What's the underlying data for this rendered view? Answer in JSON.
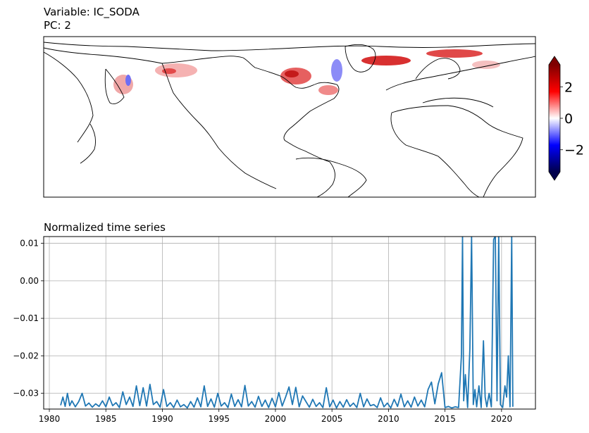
{
  "map_panel": {
    "title_line1": "Variable: IC_SODA",
    "title_line2": "PC: 2",
    "colormap": [
      "#00004c",
      "#0000ff",
      "#ffffff",
      "#ff0000",
      "#7f0000"
    ],
    "colorbar": {
      "ticks": [
        -2,
        0,
        2
      ],
      "tick_labels": [
        "−2",
        "0",
        "2"
      ],
      "vmin": -3.4,
      "vmax": 3.4
    }
  },
  "chart_data": {
    "type": "line",
    "title": "Normalized time series",
    "xlabel": "",
    "ylabel": "",
    "xlim": [
      1979.5,
      2023.0
    ],
    "ylim": [
      -0.0342,
      0.0118
    ],
    "x_ticks": [
      1980,
      1985,
      1990,
      1995,
      2000,
      2005,
      2010,
      2015,
      2020
    ],
    "x_tick_labels": [
      "1980",
      "1985",
      "1990",
      "1995",
      "2000",
      "2005",
      "2010",
      "2015",
      "2020"
    ],
    "y_ticks": [
      -0.03,
      -0.02,
      -0.01,
      0.0,
      0.01
    ],
    "y_tick_labels": [
      "−0.03",
      "−0.02",
      "−0.01",
      "0.00",
      "0.01"
    ],
    "grid": true,
    "line_color": "#1f77b4",
    "series": [
      {
        "x": [
          1981.0,
          1981.2,
          1981.4,
          1981.6,
          1981.8,
          1982.0,
          1982.3,
          1982.6,
          1982.9,
          1983.2,
          1983.5,
          1983.8,
          1984.1,
          1984.4,
          1984.7,
          1985.0,
          1985.3,
          1985.6,
          1985.9,
          1986.2,
          1986.5,
          1986.8,
          1987.1,
          1987.4,
          1987.7,
          1988.0,
          1988.3,
          1988.6,
          1988.9,
          1989.2,
          1989.5,
          1989.8,
          1990.1,
          1990.4,
          1990.7,
          1991.0,
          1991.3,
          1991.6,
          1991.9,
          1992.2,
          1992.5,
          1992.8,
          1993.1,
          1993.4,
          1993.7,
          1994.0,
          1994.3,
          1994.6,
          1994.9,
          1995.2,
          1995.5,
          1995.8,
          1996.1,
          1996.4,
          1996.7,
          1997.0,
          1997.3,
          1997.6,
          1997.9,
          1998.2,
          1998.5,
          1998.8,
          1999.1,
          1999.4,
          1999.7,
          2000.0,
          2000.3,
          2000.6,
          2000.9,
          2001.2,
          2001.5,
          2001.8,
          2002.1,
          2002.4,
          2002.7,
          2003.0,
          2003.3,
          2003.6,
          2003.9,
          2004.2,
          2004.5,
          2004.8,
          2005.1,
          2005.4,
          2005.7,
          2006.0,
          2006.3,
          2006.6,
          2006.9,
          2007.2,
          2007.5,
          2007.8,
          2008.1,
          2008.4,
          2008.7,
          2009.0,
          2009.3,
          2009.6,
          2009.9,
          2010.2,
          2010.5,
          2010.8,
          2011.1,
          2011.4,
          2011.7,
          2012.0,
          2012.3,
          2012.6,
          2012.9,
          2013.2,
          2013.5,
          2013.8,
          2014.1,
          2014.4,
          2014.7,
          2015.0,
          2015.3,
          2015.6,
          2015.9,
          2016.2,
          2016.45,
          2016.55,
          2016.65,
          2016.8,
          2017.0,
          2017.2,
          2017.35,
          2017.5,
          2017.65,
          2017.8,
          2018.0,
          2018.2,
          2018.4,
          2018.55,
          2018.7,
          2018.9,
          2019.1,
          2019.3,
          2019.45,
          2019.6,
          2019.75,
          2019.9,
          2020.1,
          2020.3,
          2020.45,
          2020.6,
          2020.75,
          2020.9,
          2021.0
        ],
        "y": [
          -0.0332,
          -0.031,
          -0.0335,
          -0.03,
          -0.0333,
          -0.032,
          -0.0336,
          -0.0322,
          -0.03,
          -0.0334,
          -0.0326,
          -0.0337,
          -0.0328,
          -0.0335,
          -0.032,
          -0.0336,
          -0.031,
          -0.0333,
          -0.0325,
          -0.0338,
          -0.0296,
          -0.033,
          -0.031,
          -0.0335,
          -0.028,
          -0.0333,
          -0.0285,
          -0.0334,
          -0.0276,
          -0.033,
          -0.0322,
          -0.0337,
          -0.029,
          -0.0335,
          -0.0325,
          -0.0338,
          -0.0318,
          -0.0336,
          -0.033,
          -0.0339,
          -0.0322,
          -0.0337,
          -0.0312,
          -0.0336,
          -0.028,
          -0.0335,
          -0.0315,
          -0.0337,
          -0.03,
          -0.0334,
          -0.0325,
          -0.0338,
          -0.0302,
          -0.0335,
          -0.0317,
          -0.0336,
          -0.0279,
          -0.0334,
          -0.0322,
          -0.0337,
          -0.0308,
          -0.0335,
          -0.0318,
          -0.0338,
          -0.0313,
          -0.0336,
          -0.0298,
          -0.0334,
          -0.031,
          -0.0283,
          -0.033,
          -0.0284,
          -0.0336,
          -0.0307,
          -0.0322,
          -0.0337,
          -0.0316,
          -0.0335,
          -0.0325,
          -0.0338,
          -0.0285,
          -0.0336,
          -0.0318,
          -0.0339,
          -0.0322,
          -0.0337,
          -0.0317,
          -0.0335,
          -0.0326,
          -0.0338,
          -0.03,
          -0.0336,
          -0.0315,
          -0.0333,
          -0.033,
          -0.0338,
          -0.0312,
          -0.0336,
          -0.0326,
          -0.0339,
          -0.0316,
          -0.0335,
          -0.0302,
          -0.0336,
          -0.032,
          -0.0337,
          -0.031,
          -0.0334,
          -0.0318,
          -0.0336,
          -0.029,
          -0.027,
          -0.0328,
          -0.0275,
          -0.0245,
          -0.0338,
          -0.0335,
          -0.0339,
          -0.0336,
          -0.0338,
          -0.02,
          0.012,
          -0.032,
          -0.025,
          -0.0338,
          -0.018,
          0.012,
          -0.033,
          -0.029,
          -0.0336,
          -0.028,
          -0.0338,
          -0.016,
          -0.031,
          -0.0336,
          -0.03,
          -0.0336,
          0.011,
          0.012,
          -0.032,
          0.012,
          -0.033,
          -0.0338,
          -0.028,
          -0.031,
          -0.02,
          -0.0336,
          0.012,
          -0.0336
        ]
      }
    ]
  }
}
